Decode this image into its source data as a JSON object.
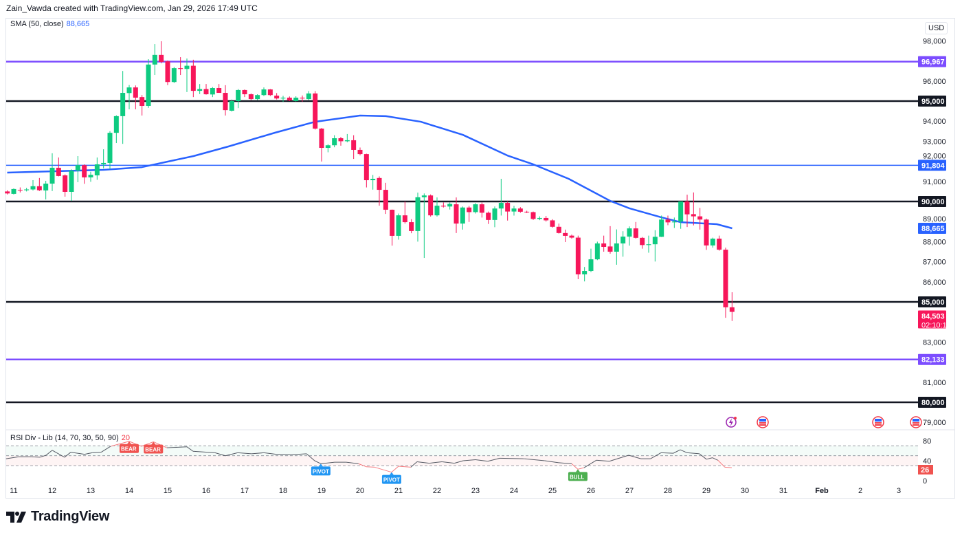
{
  "credit": "Zain_Vawda created with TradingView.com, Jan 29, 2026 17:49 UTC",
  "currency": "USD",
  "brand": "TradingView",
  "indicators": {
    "sma": {
      "label": "SMA (50, close)",
      "value": "88,665",
      "color": "#2962ff"
    },
    "rsi": {
      "label": "RSI Div - Lib (14, 70, 30, 50, 90)",
      "value": "20",
      "current": "26"
    }
  },
  "colors": {
    "up": "#0ecb81",
    "down": "#f7165a",
    "purple": "#7c4dff",
    "blue": "#2962ff",
    "black": "#131722",
    "rsi_line": "#555a64",
    "rsi_div": "#f77c80"
  },
  "events": [
    {
      "icon": "lightning-event-icon",
      "date": "Jan 29.75"
    },
    {
      "icon": "us-flag-event-icon",
      "date": "Jan 30.6"
    },
    {
      "icon": "us-flag-event-icon",
      "date": "Feb 2.6"
    },
    {
      "icon": "us-flag-event-icon",
      "date": "Feb 3.6"
    }
  ],
  "chart_data": {
    "type": "candlestick",
    "interval": "4h",
    "first_candle": "Jan 10 20:00",
    "ohlc": [
      [
        90500,
        90560,
        90350,
        90400
      ],
      [
        90380,
        90650,
        90350,
        90620
      ],
      [
        90580,
        90700,
        90450,
        90560
      ],
      [
        90560,
        90680,
        90500,
        90600
      ],
      [
        90600,
        91060,
        90550,
        90760
      ],
      [
        90760,
        91170,
        90520,
        90560
      ],
      [
        90550,
        91030,
        90100,
        90890
      ],
      [
        90890,
        92400,
        90520,
        91680
      ],
      [
        91680,
        92190,
        91250,
        91270
      ],
      [
        91300,
        91350,
        90240,
        90480
      ],
      [
        90480,
        91600,
        90030,
        91540
      ],
      [
        91540,
        92260,
        90960,
        91810
      ],
      [
        91810,
        91850,
        90880,
        91200
      ],
      [
        91200,
        91480,
        90980,
        91330
      ],
      [
        91300,
        92190,
        91080,
        91850
      ],
      [
        91850,
        92600,
        91650,
        91920
      ],
      [
        91920,
        93500,
        91620,
        93420
      ],
      [
        93420,
        94290,
        92910,
        94250
      ],
      [
        94250,
        96500,
        92870,
        95410
      ],
      [
        95400,
        95800,
        94590,
        95680
      ],
      [
        95680,
        95780,
        94590,
        95170
      ],
      [
        95200,
        95300,
        94280,
        94760
      ],
      [
        94760,
        97090,
        94660,
        96820
      ],
      [
        96820,
        97840,
        96300,
        97300
      ],
      [
        97300,
        97980,
        96880,
        96950
      ],
      [
        96980,
        97020,
        95790,
        95950
      ],
      [
        95950,
        96700,
        95900,
        96640
      ],
      [
        96640,
        97190,
        96300,
        96600
      ],
      [
        96600,
        97120,
        95450,
        96760
      ],
      [
        96760,
        97060,
        95200,
        95510
      ],
      [
        95510,
        95850,
        95350,
        95600
      ],
      [
        95600,
        95850,
        95320,
        95340
      ],
      [
        95330,
        95700,
        95200,
        95650
      ],
      [
        95650,
        95850,
        95500,
        95410
      ],
      [
        95410,
        95790,
        94280,
        94550
      ],
      [
        94520,
        95080,
        94480,
        95000
      ],
      [
        95000,
        95600,
        94650,
        95550
      ],
      [
        95550,
        95580,
        95200,
        95340
      ],
      [
        95340,
        95380,
        95050,
        95100
      ],
      [
        95100,
        95340,
        95050,
        95300
      ],
      [
        95300,
        95680,
        95250,
        95580
      ],
      [
        95580,
        95600,
        95250,
        95300
      ],
      [
        95270,
        95400,
        95080,
        95130
      ],
      [
        95130,
        95260,
        94960,
        95170
      ],
      [
        95170,
        95230,
        95000,
        95030
      ],
      [
        95000,
        95240,
        94980,
        95170
      ],
      [
        95170,
        95280,
        94970,
        95130
      ],
      [
        95100,
        95500,
        95050,
        95380
      ],
      [
        95380,
        95500,
        93580,
        93630
      ],
      [
        93630,
        93660,
        91990,
        92670
      ],
      [
        92670,
        92850,
        92450,
        92800
      ],
      [
        92800,
        93300,
        92700,
        93150
      ],
      [
        93150,
        93220,
        92780,
        93000
      ],
      [
        93000,
        93360,
        92950,
        93050
      ],
      [
        93050,
        93300,
        92120,
        92570
      ],
      [
        92570,
        92690,
        92300,
        92360
      ],
      [
        92360,
        92380,
        90700,
        91060
      ],
      [
        91060,
        91320,
        90590,
        91130
      ],
      [
        91170,
        91250,
        89790,
        90580
      ],
      [
        90580,
        90930,
        89380,
        89590
      ],
      [
        89590,
        89600,
        87800,
        88290
      ],
      [
        88290,
        89400,
        88100,
        89310
      ],
      [
        89310,
        90000,
        88900,
        88970
      ],
      [
        88970,
        89120,
        88420,
        88530
      ],
      [
        88530,
        90440,
        88000,
        90210
      ],
      [
        90210,
        90400,
        87190,
        90300
      ],
      [
        90300,
        90350,
        89250,
        89310
      ],
      [
        89310,
        90200,
        89250,
        89790
      ],
      [
        89790,
        89950,
        89700,
        89750
      ],
      [
        89750,
        89950,
        89600,
        89880
      ],
      [
        89860,
        90200,
        88430,
        88900
      ],
      [
        88900,
        89750,
        88600,
        89700
      ],
      [
        89700,
        89780,
        88980,
        89470
      ],
      [
        89470,
        89920,
        89400,
        89860
      ],
      [
        89860,
        89950,
        89200,
        89440
      ],
      [
        89440,
        89500,
        88880,
        89080
      ],
      [
        89080,
        89750,
        88720,
        89650
      ],
      [
        89650,
        91130,
        89300,
        89930
      ],
      [
        89930,
        90000,
        89050,
        89500
      ],
      [
        89500,
        89780,
        89300,
        89650
      ],
      [
        89650,
        89720,
        89440,
        89490
      ],
      [
        89490,
        89540,
        89420,
        89470
      ],
      [
        89470,
        89500,
        89080,
        89130
      ],
      [
        89130,
        89260,
        89070,
        89180
      ],
      [
        89180,
        89280,
        89000,
        89060
      ],
      [
        89060,
        89120,
        88700,
        88740
      ],
      [
        88740,
        88900,
        88400,
        88430
      ],
      [
        88430,
        88600,
        87980,
        88290
      ],
      [
        88300,
        88350,
        88150,
        88200
      ],
      [
        88200,
        88300,
        86130,
        86370
      ],
      [
        86370,
        86740,
        86020,
        86540
      ],
      [
        86540,
        87650,
        86480,
        87120
      ],
      [
        87120,
        88000,
        87080,
        87910
      ],
      [
        87910,
        88300,
        87500,
        87740
      ],
      [
        87760,
        88770,
        87400,
        87500
      ],
      [
        87500,
        88610,
        86850,
        87910
      ],
      [
        87910,
        88520,
        87250,
        88250
      ],
      [
        88250,
        88760,
        87800,
        88660
      ],
      [
        88660,
        88980,
        88150,
        88190
      ],
      [
        88190,
        88230,
        87650,
        87830
      ],
      [
        87830,
        88300,
        87450,
        87870
      ],
      [
        87870,
        88570,
        87010,
        88240
      ],
      [
        88240,
        89300,
        88230,
        89100
      ],
      [
        89100,
        89300,
        88820,
        88960
      ],
      [
        88960,
        89200,
        88680,
        89000
      ],
      [
        89000,
        90000,
        88640,
        90000
      ],
      [
        90000,
        90340,
        88730,
        89360
      ],
      [
        89370,
        90450,
        88810,
        89260
      ],
      [
        89260,
        89680,
        88600,
        89100
      ],
      [
        89100,
        89150,
        87590,
        87810
      ],
      [
        87810,
        88200,
        87700,
        88150
      ],
      [
        88150,
        88300,
        87550,
        87600
      ],
      [
        87600,
        87700,
        84210,
        84730
      ],
      [
        84730,
        85480,
        84050,
        84503
      ]
    ],
    "last_price": "84,503",
    "countdown": "02:10:10",
    "sma_50": [
      [
        10.83,
        91440
      ],
      [
        13.33,
        91575
      ],
      [
        14.33,
        91710
      ],
      [
        15.67,
        92260
      ],
      [
        16.58,
        92740
      ],
      [
        17.78,
        93420
      ],
      [
        18.83,
        93970
      ],
      [
        20.0,
        94280
      ],
      [
        20.67,
        94250
      ],
      [
        21.58,
        93970
      ],
      [
        22.67,
        93320
      ],
      [
        23.83,
        92290
      ],
      [
        24.5,
        91850
      ],
      [
        25.42,
        91130
      ],
      [
        26.5,
        90030
      ],
      [
        27.0,
        89660
      ],
      [
        27.83,
        89210
      ],
      [
        28.33,
        88970
      ],
      [
        29.27,
        88870
      ],
      [
        29.67,
        88665
      ]
    ],
    "horizontal_levels": [
      {
        "price": 96967,
        "label": "96,967",
        "color": "#7c4dff",
        "weight": "thick"
      },
      {
        "price": 95000,
        "label": "95,000",
        "color": "#131722",
        "weight": "thick"
      },
      {
        "price": 91804,
        "label": "91,804",
        "color": "#2962ff",
        "weight": "thin"
      },
      {
        "price": 90000,
        "label": "90,000",
        "color": "#131722",
        "weight": "thick"
      },
      {
        "price": 85000,
        "label": "85,000",
        "color": "#131722",
        "weight": "thick"
      },
      {
        "price": 82133,
        "label": "82,133",
        "color": "#7c4dff",
        "weight": "thick"
      },
      {
        "price": 80000,
        "label": "80,000",
        "color": "#131722",
        "weight": "thick"
      }
    ],
    "price_ticks": [
      "98,000",
      "96,000",
      "94,000",
      "93,000",
      "92,000",
      "91,000",
      "89,000",
      "88,000",
      "87,000",
      "86,000",
      "83,000",
      "81,000",
      "79,000"
    ],
    "price_range": [
      79000,
      98000
    ],
    "x_ticks": [
      "11",
      "12",
      "13",
      "14",
      "15",
      "16",
      "17",
      "18",
      "19",
      "20",
      "21",
      "22",
      "23",
      "24",
      "25",
      "26",
      "27",
      "28",
      "29",
      "30",
      "31",
      "Feb",
      "2",
      "3"
    ],
    "rsi": {
      "levels": [
        70,
        50,
        30
      ],
      "ticks": [
        "80",
        "40",
        "0"
      ],
      "range": [
        0,
        80
      ],
      "points": [
        [
          10.8,
          44
        ],
        [
          11.13,
          48
        ],
        [
          11.45,
          48
        ],
        [
          11.68,
          47
        ],
        [
          11.84,
          51
        ],
        [
          12.0,
          61
        ],
        [
          12.32,
          47
        ],
        [
          12.48,
          57
        ],
        [
          12.84,
          53
        ],
        [
          13.04,
          56
        ],
        [
          13.27,
          57
        ],
        [
          13.52,
          69
        ],
        [
          14.0,
          79
        ],
        [
          14.32,
          69
        ],
        [
          14.63,
          78
        ],
        [
          14.98,
          66
        ],
        [
          15.5,
          68
        ],
        [
          15.66,
          59
        ],
        [
          16.23,
          56
        ],
        [
          16.5,
          50
        ],
        [
          16.82,
          56
        ],
        [
          17.18,
          54
        ],
        [
          17.5,
          56
        ],
        [
          17.82,
          53
        ],
        [
          18.21,
          52
        ],
        [
          18.61,
          54
        ],
        [
          18.82,
          40
        ],
        [
          18.98,
          34
        ],
        [
          19.34,
          37
        ],
        [
          19.64,
          37
        ],
        [
          19.96,
          34
        ],
        [
          20.16,
          28
        ],
        [
          20.38,
          27
        ],
        [
          20.82,
          17
        ],
        [
          21.0,
          29
        ],
        [
          21.32,
          27
        ],
        [
          21.48,
          38
        ],
        [
          21.8,
          35
        ],
        [
          22.13,
          38
        ],
        [
          22.45,
          35
        ],
        [
          22.68,
          40
        ],
        [
          23.0,
          42
        ],
        [
          23.32,
          39
        ],
        [
          23.63,
          45
        ],
        [
          24.27,
          44
        ],
        [
          24.8,
          40
        ],
        [
          25.16,
          36
        ],
        [
          25.5,
          34
        ],
        [
          25.66,
          23
        ],
        [
          25.82,
          26
        ],
        [
          26.14,
          41
        ],
        [
          26.48,
          39
        ],
        [
          26.98,
          51
        ],
        [
          27.3,
          44
        ],
        [
          27.55,
          44
        ],
        [
          27.82,
          56
        ],
        [
          28.14,
          55
        ],
        [
          28.32,
          62
        ],
        [
          28.5,
          56
        ],
        [
          28.82,
          54
        ],
        [
          29.0,
          43
        ],
        [
          29.16,
          46
        ],
        [
          29.3,
          41
        ],
        [
          29.48,
          27
        ],
        [
          29.66,
          26
        ]
      ],
      "divergence_ranges": [
        [
          13.52,
          14.98
        ],
        [
          19.96,
          21.32
        ],
        [
          25.5,
          25.82
        ],
        [
          29.3,
          29.66
        ]
      ],
      "signals": [
        {
          "label": "BEAR",
          "day": 14.0,
          "value": 79,
          "type": "bear"
        },
        {
          "label": "BEAR",
          "day": 14.63,
          "value": 78,
          "type": "bear"
        },
        {
          "label": "PIVOT",
          "day": 18.98,
          "value": 34,
          "type": "pivot"
        },
        {
          "label": "PIVOT",
          "day": 20.82,
          "value": 17,
          "type": "pivot"
        },
        {
          "label": "BULL",
          "day": 25.66,
          "value": 23,
          "type": "bull"
        }
      ]
    }
  }
}
